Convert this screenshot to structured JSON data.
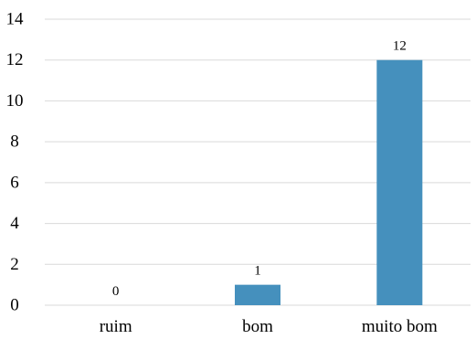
{
  "chart_data": {
    "type": "bar",
    "categories": [
      "ruim",
      "bom",
      "muito bom"
    ],
    "values": [
      0,
      1,
      12
    ],
    "data_labels": [
      "0",
      "1",
      "12"
    ],
    "ylim": [
      0,
      14
    ],
    "y_ticks": [
      "0",
      "2",
      "4",
      "6",
      "8",
      "10",
      "12",
      "14"
    ],
    "title": "",
    "xlabel": "",
    "ylabel": "",
    "grid": true,
    "legend": "none",
    "bar_color": "#4590bd",
    "grid_color": "#d9d9d9"
  }
}
